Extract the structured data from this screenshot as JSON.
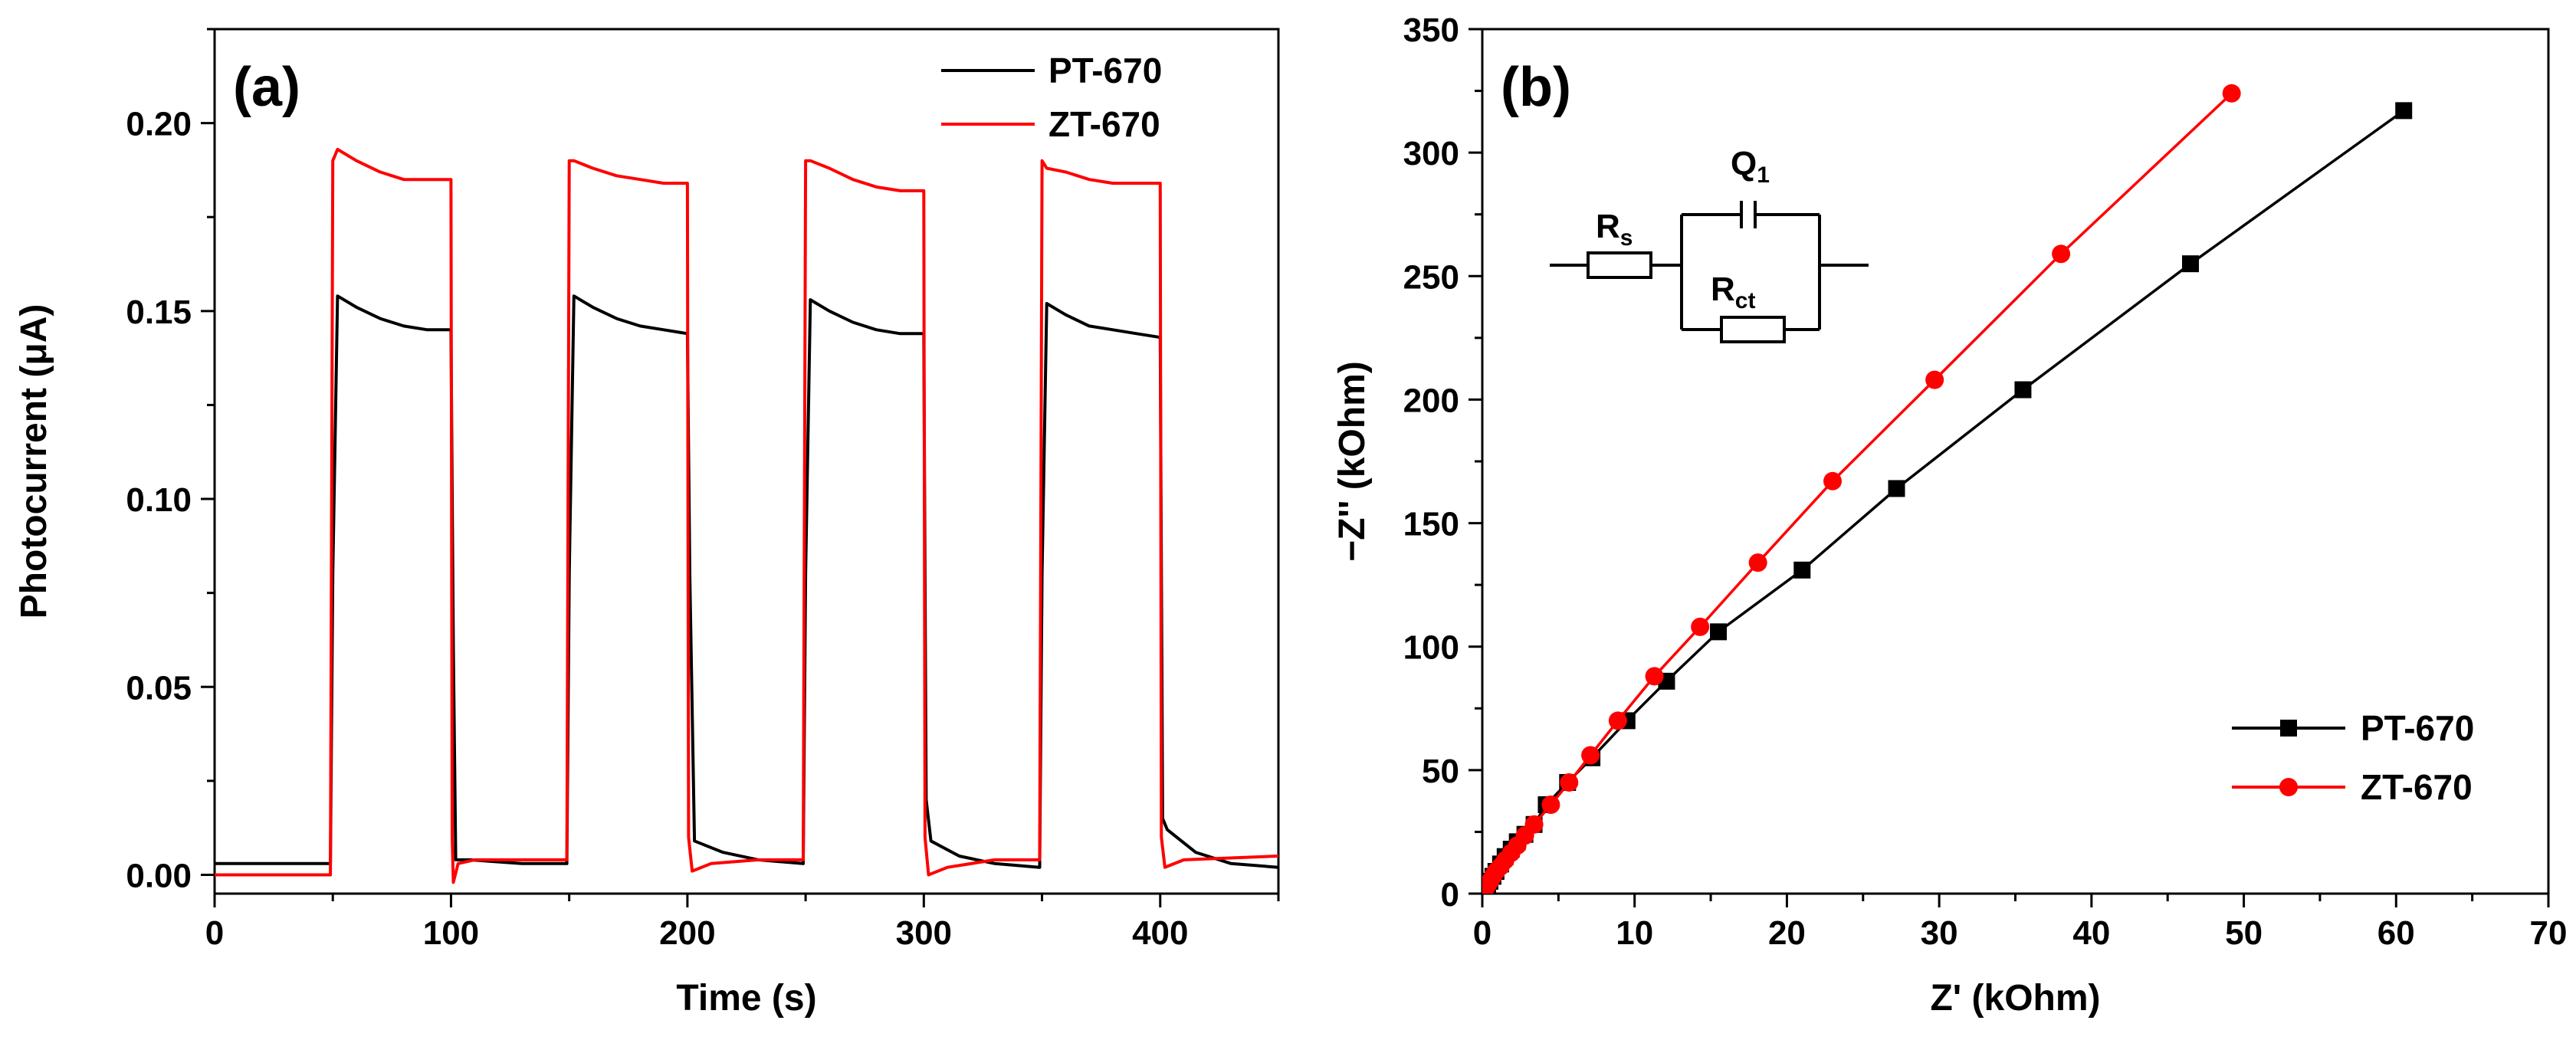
{
  "chart_data": [
    {
      "type": "line",
      "panel_label": "(a)",
      "title": "",
      "xlabel": "Time (s)",
      "ylabel": "Photocurrent (μA)",
      "xlim": [
        0,
        450
      ],
      "ylim": [
        -0.005,
        0.225
      ],
      "xticks": [
        0,
        100,
        200,
        300,
        400
      ],
      "yticks": [
        0.0,
        0.05,
        0.1,
        0.15,
        0.2
      ],
      "xtick_labels": [
        "0",
        "100",
        "200",
        "300",
        "400"
      ],
      "ytick_labels": [
        "0.00",
        "0.05",
        "0.10",
        "0.15",
        "0.20"
      ],
      "legend_position": "top-right",
      "series": [
        {
          "name": "PT-670",
          "color": "#000000",
          "marker": "none",
          "x": [
            0,
            49,
            50,
            52,
            60,
            70,
            80,
            90,
            100,
            101,
            102,
            108,
            130,
            149,
            150,
            152,
            160,
            170,
            180,
            190,
            200,
            201,
            203,
            215,
            230,
            249,
            250,
            252,
            260,
            270,
            280,
            290,
            300,
            301,
            303,
            315,
            330,
            349,
            350,
            352,
            360,
            370,
            380,
            390,
            400,
            401,
            403,
            415,
            430,
            450
          ],
          "y": [
            0.003,
            0.003,
            0.08,
            0.154,
            0.151,
            0.148,
            0.146,
            0.145,
            0.145,
            0.06,
            0.004,
            0.004,
            0.003,
            0.003,
            0.08,
            0.154,
            0.151,
            0.148,
            0.146,
            0.145,
            0.144,
            0.08,
            0.009,
            0.006,
            0.004,
            0.003,
            0.08,
            0.153,
            0.15,
            0.147,
            0.145,
            0.144,
            0.144,
            0.02,
            0.009,
            0.005,
            0.003,
            0.002,
            0.08,
            0.152,
            0.149,
            0.146,
            0.145,
            0.144,
            0.143,
            0.015,
            0.012,
            0.006,
            0.003,
            0.002
          ]
        },
        {
          "name": "ZT-670",
          "color": "#ff0000",
          "marker": "none",
          "x": [
            0,
            49,
            50,
            52,
            60,
            70,
            80,
            90,
            100,
            100.5,
            101,
            103,
            110,
            130,
            149,
            150,
            152,
            160,
            170,
            180,
            190,
            200,
            200.5,
            202,
            210,
            230,
            249,
            250,
            252,
            260,
            270,
            280,
            290,
            300,
            300.5,
            302,
            310,
            330,
            349,
            350,
            352,
            360,
            370,
            380,
            390,
            400,
            400.5,
            402,
            410,
            450
          ],
          "y": [
            0.0,
            0.0,
            0.19,
            0.193,
            0.19,
            0.187,
            0.185,
            0.185,
            0.185,
            0.01,
            -0.002,
            0.003,
            0.004,
            0.004,
            0.004,
            0.19,
            0.19,
            0.188,
            0.186,
            0.185,
            0.184,
            0.184,
            0.01,
            0.001,
            0.003,
            0.004,
            0.004,
            0.19,
            0.19,
            0.188,
            0.185,
            0.183,
            0.182,
            0.182,
            0.01,
            0.0,
            0.002,
            0.004,
            0.004,
            0.19,
            0.188,
            0.187,
            0.185,
            0.184,
            0.184,
            0.184,
            0.01,
            0.002,
            0.004,
            0.005
          ]
        }
      ]
    },
    {
      "type": "scatter",
      "panel_label": "(b)",
      "title": "",
      "xlabel": "Z' (kOhm)",
      "ylabel": "−Z'' (kOhm)",
      "xlim": [
        0,
        70
      ],
      "ylim": [
        0,
        350
      ],
      "xticks": [
        0,
        10,
        20,
        30,
        40,
        50,
        60,
        70
      ],
      "yticks": [
        0,
        50,
        100,
        150,
        200,
        250,
        300,
        350
      ],
      "xtick_labels": [
        "0",
        "10",
        "20",
        "30",
        "40",
        "50",
        "60",
        "70"
      ],
      "ytick_labels": [
        "0",
        "50",
        "100",
        "150",
        "200",
        "250",
        "300",
        "350"
      ],
      "legend_position": "bottom-right",
      "inset_circuit": {
        "labels": [
          {
            "main": "R",
            "sub": "s"
          },
          {
            "main": "Q",
            "sub": "1"
          },
          {
            "main": "R",
            "sub": "ct"
          }
        ]
      },
      "series": [
        {
          "name": "PT-670",
          "color": "#000000",
          "marker": "square",
          "x": [
            0.1,
            0.2,
            0.35,
            0.5,
            0.7,
            0.9,
            1.2,
            1.5,
            1.9,
            2.3,
            2.8,
            3.4,
            4.2,
            5.6,
            7.2,
            9.5,
            12.1,
            15.5,
            21.0,
            27.2,
            35.5,
            46.5,
            60.5
          ],
          "y": [
            1,
            2,
            3.5,
            5,
            7,
            9,
            12,
            15,
            18,
            21,
            24,
            28,
            36,
            45,
            55,
            70,
            86,
            106,
            131,
            164,
            204,
            255,
            317
          ]
        },
        {
          "name": "ZT-670",
          "color": "#ff0000",
          "marker": "circle",
          "x": [
            0.1,
            0.2,
            0.35,
            0.5,
            0.7,
            0.9,
            1.2,
            1.5,
            1.9,
            2.3,
            2.8,
            3.4,
            4.5,
            5.7,
            7.1,
            8.9,
            11.3,
            14.3,
            18.1,
            23.0,
            29.7,
            38.0,
            49.2
          ],
          "y": [
            1,
            2,
            3.5,
            5,
            7,
            9,
            11,
            13.5,
            16.5,
            19.5,
            23.5,
            28,
            36,
            45,
            56,
            70,
            88,
            108,
            134,
            167,
            208,
            259,
            324
          ]
        }
      ]
    }
  ]
}
